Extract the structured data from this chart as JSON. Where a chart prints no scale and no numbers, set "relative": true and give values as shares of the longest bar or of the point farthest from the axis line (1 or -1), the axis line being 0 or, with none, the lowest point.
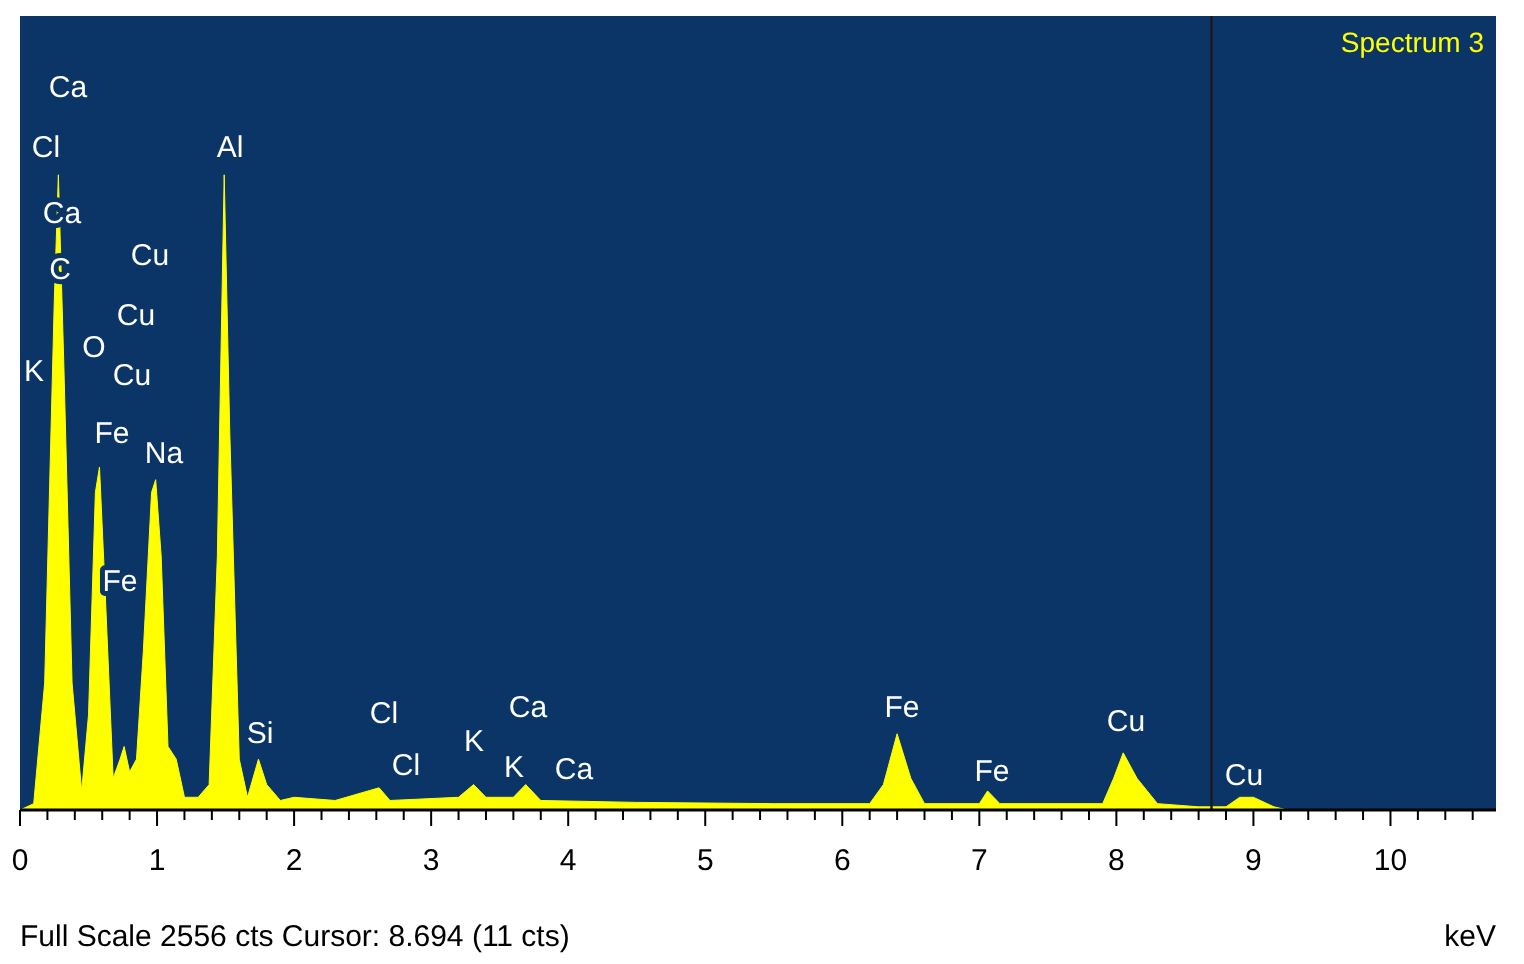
{
  "chart_data": {
    "type": "area",
    "title": "Spectrum 3",
    "xlabel": "keV",
    "relative": true,
    "color": "#ffff00",
    "x": [
      0.0,
      0.1,
      0.18,
      0.25,
      0.28,
      0.32,
      0.38,
      0.45,
      0.5,
      0.55,
      0.58,
      0.62,
      0.68,
      0.73,
      0.76,
      0.8,
      0.85,
      0.9,
      0.96,
      0.99,
      1.03,
      1.08,
      1.14,
      1.2,
      1.3,
      1.38,
      1.44,
      1.49,
      1.53,
      1.6,
      1.66,
      1.74,
      1.8,
      1.9,
      2.0,
      2.3,
      2.62,
      2.7,
      3.2,
      3.31,
      3.4,
      3.6,
      3.69,
      3.8,
      4.5,
      5.5,
      6.2,
      6.3,
      6.4,
      6.5,
      6.6,
      7.0,
      7.06,
      7.15,
      7.9,
      7.98,
      8.05,
      8.15,
      8.3,
      8.6,
      8.8,
      8.9,
      9.0,
      9.15,
      9.25
    ],
    "values": [
      0,
      0.01,
      0.2,
      0.8,
      1.0,
      0.7,
      0.2,
      0.03,
      0.15,
      0.5,
      0.54,
      0.35,
      0.05,
      0.08,
      0.1,
      0.06,
      0.08,
      0.25,
      0.5,
      0.52,
      0.4,
      0.1,
      0.08,
      0.02,
      0.02,
      0.04,
      0.4,
      1.0,
      0.6,
      0.08,
      0.02,
      0.08,
      0.04,
      0.015,
      0.02,
      0.015,
      0.035,
      0.015,
      0.02,
      0.04,
      0.02,
      0.02,
      0.04,
      0.015,
      0.012,
      0.01,
      0.01,
      0.04,
      0.12,
      0.05,
      0.01,
      0.01,
      0.03,
      0.01,
      0.01,
      0.05,
      0.09,
      0.05,
      0.01,
      0.005,
      0.005,
      0.02,
      0.02,
      0.005,
      0
    ],
    "xlim": [
      0,
      10.77
    ],
    "xticks": [
      0,
      {
        "value": 0.2,
        "label": null
      },
      {
        "value": 0.4,
        "label": null
      },
      {
        "value": 0.6,
        "label": null
      },
      {
        "value": 0.8,
        "label": null
      },
      1,
      {
        "value": 1.2,
        "label": null
      },
      {
        "value": 1.4,
        "label": null
      },
      {
        "value": 1.6,
        "label": null
      },
      {
        "value": 1.8,
        "label": null
      },
      2,
      {
        "value": 2.2,
        "label": null
      },
      {
        "value": 2.4,
        "label": null
      },
      {
        "value": 2.6,
        "label": null
      },
      {
        "value": 2.8,
        "label": null
      },
      3,
      {
        "value": 3.2,
        "label": null
      },
      {
        "value": 3.4,
        "label": null
      },
      {
        "value": 3.6,
        "label": null
      },
      {
        "value": 3.8,
        "label": null
      },
      4,
      {
        "value": 4.2,
        "label": null
      },
      {
        "value": 4.4,
        "label": null
      },
      {
        "value": 4.6,
        "label": null
      },
      {
        "value": 4.8,
        "label": null
      },
      5,
      {
        "value": 5.2,
        "label": null
      },
      {
        "value": 5.4,
        "label": null
      },
      {
        "value": 5.6,
        "label": null
      },
      {
        "value": 5.8,
        "label": null
      },
      6,
      {
        "value": 6.2,
        "label": null
      },
      {
        "value": 6.4,
        "label": null
      },
      {
        "value": 6.6,
        "label": null
      },
      {
        "value": 6.8,
        "label": null
      },
      7,
      {
        "value": 7.2,
        "label": null
      },
      {
        "value": 7.4,
        "label": null
      },
      {
        "value": 7.6,
        "label": null
      },
      {
        "value": 7.8,
        "label": null
      },
      8,
      {
        "value": 8.2,
        "label": null
      },
      {
        "value": 8.4,
        "label": null
      },
      {
        "value": 8.6,
        "label": null
      },
      {
        "value": 8.8,
        "label": null
      },
      9,
      {
        "value": 9.2,
        "label": null
      },
      {
        "value": 9.4,
        "label": null
      },
      {
        "value": 9.6,
        "label": null
      },
      {
        "value": 9.8,
        "label": null
      },
      10,
      {
        "value": 10.2,
        "label": null
      },
      {
        "value": 10.4,
        "label": null
      },
      {
        "value": 10.6,
        "label": null
      }
    ],
    "ref_lines": [
      {
        "axis": "x",
        "value": 8.694,
        "color": "#1a1a1a"
      }
    ],
    "annotations": [
      "Ca",
      "Cl",
      "Ca",
      "C",
      "K",
      "O",
      "Cu",
      "Cu",
      "Cu",
      "Fe",
      "Na",
      "Fe",
      "Al",
      "Si",
      "Cl",
      "Cl",
      "K",
      "Ca",
      "K",
      "Ca",
      "Fe",
      "Fe",
      "Cu",
      "Cu",
      "Full Scale 2556 cts Cursor: 8.694  (11 cts)"
    ]
  }
}
